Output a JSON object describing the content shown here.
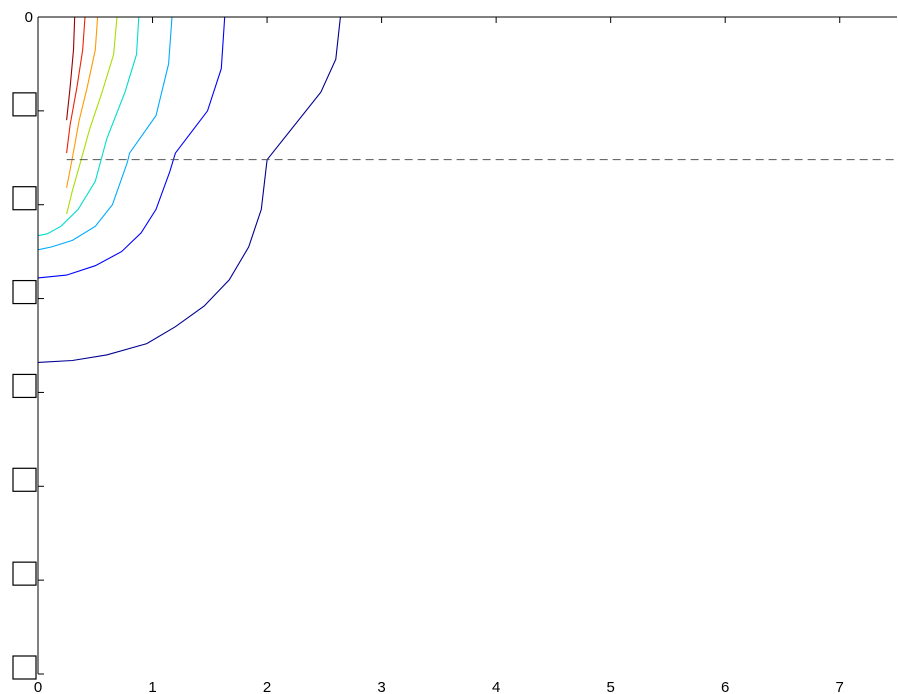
{
  "chart_data": {
    "type": "line",
    "title": "",
    "xlabel": "",
    "ylabel": "",
    "xlim": [
      0,
      7.5
    ],
    "ylim": [
      -7,
      0
    ],
    "x_ticks": [
      0,
      1,
      2,
      3,
      4,
      5,
      6,
      7
    ],
    "y_ticks": [
      0,
      -1,
      -2,
      -3,
      -4,
      -5,
      -6,
      -7
    ],
    "x_tick_labels": [
      "0",
      "1",
      "2",
      "3",
      "4",
      "5",
      "6",
      "7"
    ],
    "y_tick_labels": [
      "0",
      "-1",
      "-2",
      "-3",
      "-4",
      "-5",
      "-6",
      "-7"
    ],
    "grid": false,
    "legend": "none",
    "reference_line": {
      "y": -1.52,
      "x_range": [
        0.25,
        7.5
      ],
      "style": "dashed",
      "color": "#555555"
    },
    "series": [
      {
        "color": "#00008f",
        "x": [
          2.64,
          2.6,
          2.47,
          2.0,
          1.95,
          1.84,
          1.67,
          1.45,
          1.2,
          0.95,
          0.6,
          0.3,
          0.0
        ],
        "y": [
          0,
          -0.45,
          -0.8,
          -1.52,
          -2.05,
          -2.45,
          -2.8,
          -3.08,
          -3.3,
          -3.48,
          -3.6,
          -3.66,
          -3.68
        ]
      },
      {
        "color": "#0000ff",
        "x": [
          1.63,
          1.6,
          1.48,
          1.2,
          1.15,
          1.03,
          0.9,
          0.73,
          0.5,
          0.25,
          0.0
        ],
        "y": [
          0,
          -0.55,
          -1.0,
          -1.45,
          -1.65,
          -2.05,
          -2.3,
          -2.5,
          -2.65,
          -2.75,
          -2.78
        ]
      },
      {
        "color": "#00aaff",
        "x": [
          1.17,
          1.14,
          1.03,
          0.8,
          0.78,
          0.65,
          0.5,
          0.3,
          0.12,
          0.0
        ],
        "y": [
          0,
          -0.5,
          -1.05,
          -1.45,
          -1.55,
          -2.0,
          -2.23,
          -2.38,
          -2.45,
          -2.48
        ]
      },
      {
        "color": "#00ddcc",
        "x": [
          0.88,
          0.86,
          0.76,
          0.6,
          0.5,
          0.35,
          0.2,
          0.08,
          0.0
        ],
        "y": [
          0,
          -0.4,
          -0.8,
          -1.3,
          -1.75,
          -2.05,
          -2.23,
          -2.31,
          -2.33
        ]
      },
      {
        "color": "#aadd00",
        "x": [
          0.69,
          0.66,
          0.56,
          0.45,
          0.37,
          0.3,
          0.25
        ],
        "y": [
          0,
          -0.4,
          -0.8,
          -1.2,
          -1.55,
          -1.85,
          -2.1
        ]
      },
      {
        "color": "#ff9900",
        "x": [
          0.52,
          0.5,
          0.43,
          0.36,
          0.3,
          0.25
        ],
        "y": [
          0,
          -0.35,
          -0.75,
          -1.1,
          -1.5,
          -1.82
        ]
      },
      {
        "color": "#ee2200",
        "x": [
          0.41,
          0.39,
          0.34,
          0.28,
          0.25
        ],
        "y": [
          0,
          -0.35,
          -0.75,
          -1.15,
          -1.45
        ]
      },
      {
        "color": "#990000",
        "x": [
          0.32,
          0.31,
          0.28,
          0.25
        ],
        "y": [
          0,
          -0.35,
          -0.75,
          -1.1
        ]
      }
    ]
  }
}
